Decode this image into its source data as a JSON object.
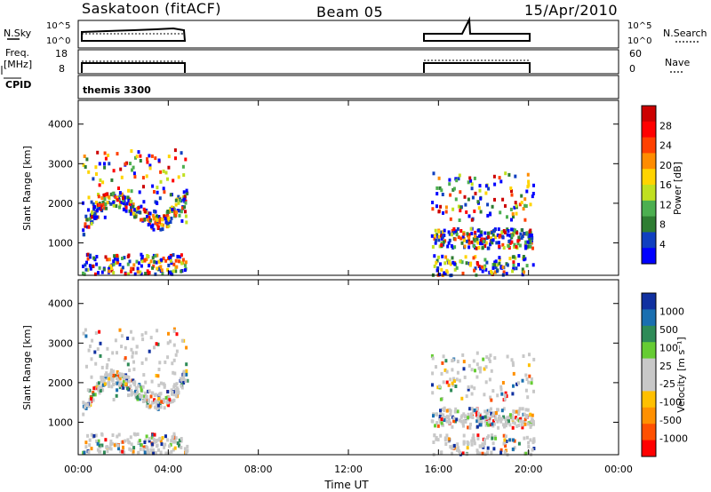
{
  "header": {
    "station": "Saskatoon (fitACF)",
    "beam": "Beam 05",
    "date": "15/Apr/2010"
  },
  "panels": {
    "nsky": {
      "label": "N.Sky",
      "right_label": "N.Search",
      "ticks_left": [
        "10^5",
        "10^0"
      ],
      "ticks_right": [
        "10^5",
        "10^0"
      ]
    },
    "freq": {
      "label_top": "Freq.",
      "label_bottom": "[MHz]",
      "right_label": "Nave",
      "ticks_left": [
        "18",
        "8"
      ],
      "ticks_right": [
        "60",
        "0"
      ]
    },
    "cpid": {
      "label": "CPID",
      "program": "themis 3300"
    }
  },
  "colors": {
    "power_scale": [
      "#0000ff",
      "#1040c0",
      "#2e7d32",
      "#4caf50",
      "#c0e020",
      "#ffd400",
      "#ff8c00",
      "#ff4000",
      "#ff0000",
      "#cc0000"
    ],
    "velocity_scale": [
      "#ff0000",
      "#ff5000",
      "#ff9000",
      "#ffc000",
      "#c8c8c8",
      "#c8c8c8",
      "#66cc33",
      "#2e8b57",
      "#1a6fb0",
      "#1030a0"
    ]
  },
  "chart_data": [
    {
      "type": "heatmap",
      "title": "",
      "xlabel": "Time UT",
      "ylabel": "Slant Range [km]",
      "x_range_hours": [
        0,
        24
      ],
      "x_tick_labels": [
        "00:00",
        "04:00",
        "08:00",
        "12:00",
        "16:00",
        "20:00",
        "00:00"
      ],
      "ylim": [
        180,
        4600
      ],
      "y_ticks": [
        1000,
        2000,
        3000,
        4000
      ],
      "colorbar": {
        "label": "Power [dB]",
        "ticks": [
          "4",
          "8",
          "12",
          "16",
          "20",
          "24",
          "28"
        ],
        "range": [
          0,
          30
        ]
      },
      "data_intervals_ut_hours": [
        [
          0.0,
          4.8
        ],
        [
          15.5,
          20.2
        ]
      ]
    },
    {
      "type": "heatmap",
      "title": "",
      "xlabel": "Time UT",
      "ylabel": "Slant Range [km]",
      "x_range_hours": [
        0,
        24
      ],
      "x_tick_labels": [
        "00:00",
        "04:00",
        "08:00",
        "12:00",
        "16:00",
        "20:00",
        "00:00"
      ],
      "ylim": [
        180,
        4600
      ],
      "y_ticks": [
        1000,
        2000,
        3000,
        4000
      ],
      "colorbar": {
        "label": "Velocity [m s⁻¹]",
        "ticks": [
          "1000",
          "500",
          "100",
          "25",
          "-25",
          "-100",
          "-500",
          "-1000"
        ]
      },
      "data_intervals_ut_hours": [
        [
          0.0,
          4.8
        ],
        [
          15.5,
          20.2
        ]
      ]
    }
  ],
  "xaxis": {
    "title": "Time UT",
    "ticks": [
      "00:00",
      "04:00",
      "08:00",
      "12:00",
      "16:00",
      "20:00",
      "00:00"
    ]
  }
}
